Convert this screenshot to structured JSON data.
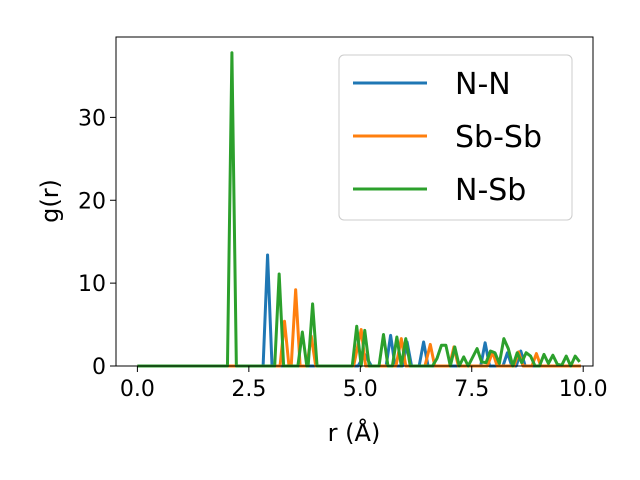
{
  "chart_data": {
    "type": "line",
    "xlabel": "r (Å)",
    "ylabel": "g(r)",
    "xlim": [
      -0.48,
      10.22
    ],
    "ylim": [
      0,
      39.7
    ],
    "xticks": [
      0.0,
      2.5,
      5.0,
      7.5,
      10.0
    ],
    "xtick_labels": [
      "0.0",
      "2.5",
      "5.0",
      "7.5",
      "10.0"
    ],
    "yticks": [
      0,
      10,
      20,
      30
    ],
    "ytick_labels": [
      "0",
      "10",
      "20",
      "30"
    ],
    "grid": false,
    "legend_position": "top-right",
    "series": [
      {
        "name": "N-N",
        "color": "#1f77b4",
        "points": [
          [
            0,
            0
          ],
          [
            2.82,
            0
          ],
          [
            2.92,
            13.4
          ],
          [
            3.02,
            0
          ],
          [
            4.7,
            0
          ],
          [
            4.95,
            0
          ],
          [
            5.1,
            1.4
          ],
          [
            5.25,
            0
          ],
          [
            5.58,
            0
          ],
          [
            5.68,
            3.7
          ],
          [
            5.78,
            0
          ],
          [
            5.95,
            0
          ],
          [
            6.05,
            2.9
          ],
          [
            6.15,
            0
          ],
          [
            6.32,
            0
          ],
          [
            6.42,
            2.9
          ],
          [
            6.52,
            0
          ],
          [
            7.7,
            0
          ],
          [
            7.8,
            2.8
          ],
          [
            7.9,
            0
          ],
          [
            8.2,
            0
          ],
          [
            8.3,
            1.6
          ],
          [
            8.4,
            0
          ],
          [
            8.5,
            0
          ],
          [
            8.6,
            1.8
          ],
          [
            8.7,
            0
          ],
          [
            8.85,
            0
          ],
          [
            9.95,
            0
          ]
        ]
      },
      {
        "name": "Sb-Sb",
        "color": "#ff7f0e",
        "points": [
          [
            0,
            0
          ],
          [
            3.2,
            0
          ],
          [
            3.3,
            5.4
          ],
          [
            3.4,
            0
          ],
          [
            3.45,
            0
          ],
          [
            3.55,
            9.2
          ],
          [
            3.65,
            0
          ],
          [
            3.8,
            0
          ],
          [
            3.9,
            3.6
          ],
          [
            4.0,
            0
          ],
          [
            4.85,
            0
          ],
          [
            5.02,
            4.4
          ],
          [
            5.12,
            0
          ],
          [
            5.8,
            0
          ],
          [
            5.92,
            3.3
          ],
          [
            6.02,
            0
          ],
          [
            6.45,
            0
          ],
          [
            6.57,
            2.6
          ],
          [
            6.67,
            0
          ],
          [
            7.0,
            0
          ],
          [
            7.1,
            2.3
          ],
          [
            7.2,
            0
          ],
          [
            7.85,
            0
          ],
          [
            7.97,
            1.7
          ],
          [
            8.07,
            0
          ],
          [
            8.45,
            0
          ],
          [
            8.55,
            1.7
          ],
          [
            8.65,
            0
          ],
          [
            8.85,
            0
          ],
          [
            8.95,
            1.5
          ],
          [
            9.05,
            0
          ],
          [
            9.95,
            0
          ]
        ]
      },
      {
        "name": "N-Sb",
        "color": "#2ca02c",
        "points": [
          [
            0,
            0
          ],
          [
            2.02,
            0
          ],
          [
            2.12,
            37.8
          ],
          [
            2.22,
            0
          ],
          [
            3.08,
            0
          ],
          [
            3.18,
            11.1
          ],
          [
            3.28,
            0
          ],
          [
            3.6,
            0
          ],
          [
            3.7,
            4.1
          ],
          [
            3.8,
            0
          ],
          [
            3.83,
            0
          ],
          [
            3.93,
            7.5
          ],
          [
            4.03,
            0
          ],
          [
            4.82,
            0
          ],
          [
            4.92,
            4.8
          ],
          [
            5.02,
            0
          ],
          [
            5.1,
            4.3
          ],
          [
            5.2,
            0
          ],
          [
            5.42,
            0
          ],
          [
            5.52,
            3.8
          ],
          [
            5.62,
            0
          ],
          [
            5.72,
            0
          ],
          [
            5.82,
            3.5
          ],
          [
            5.92,
            0
          ],
          [
            6.02,
            3.3
          ],
          [
            6.12,
            0
          ],
          [
            6.62,
            0
          ],
          [
            6.72,
            0.9
          ],
          [
            6.82,
            2.5
          ],
          [
            6.92,
            2.5
          ],
          [
            7.02,
            0
          ],
          [
            7.12,
            2.3
          ],
          [
            7.22,
            0
          ],
          [
            7.32,
            1.1
          ],
          [
            7.42,
            0
          ],
          [
            7.62,
            2.1
          ],
          [
            7.72,
            0.5
          ],
          [
            7.82,
            0.4
          ],
          [
            7.92,
            1.8
          ],
          [
            8.02,
            1.6
          ],
          [
            8.12,
            0.3
          ],
          [
            8.22,
            3.3
          ],
          [
            8.32,
            2.1
          ],
          [
            8.42,
            0
          ],
          [
            8.52,
            1.6
          ],
          [
            8.62,
            0.4
          ],
          [
            8.72,
            1.6
          ],
          [
            8.82,
            1.2
          ],
          [
            8.92,
            0
          ],
          [
            9.02,
            0
          ],
          [
            9.12,
            1.4
          ],
          [
            9.22,
            0.3
          ],
          [
            9.32,
            1.3
          ],
          [
            9.42,
            0.2
          ],
          [
            9.52,
            0.1
          ],
          [
            9.62,
            1.2
          ],
          [
            9.72,
            0
          ],
          [
            9.82,
            1.2
          ],
          [
            9.92,
            0.5
          ]
        ]
      }
    ]
  }
}
